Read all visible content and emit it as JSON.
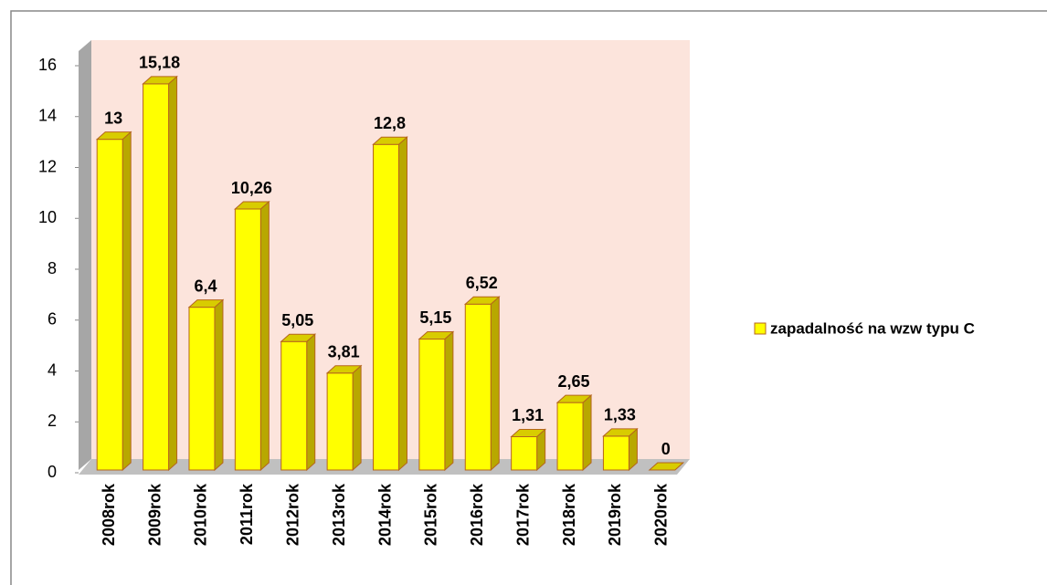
{
  "chart_data": {
    "type": "bar3d",
    "categories": [
      "2008rok",
      "2009rok",
      "2010rok",
      "2011rok",
      "2012rok",
      "2013rok",
      "2014rok",
      "2015rok",
      "2016rok",
      "2017rok",
      "2018rok",
      "2019rok",
      "2020rok"
    ],
    "series": [
      {
        "name": "zapadalność na wzw typu C",
        "color": "#ffff00",
        "values": [
          13,
          15.18,
          6.4,
          10.26,
          5.05,
          3.81,
          12.8,
          5.15,
          6.52,
          1.31,
          2.65,
          1.33,
          0
        ],
        "value_labels": [
          "13",
          "15,18",
          "6,4",
          "10,26",
          "5,05",
          "3,81",
          "12,8",
          "5,15",
          "6,52",
          "1,31",
          "2,65",
          "1,33",
          "0"
        ]
      }
    ],
    "ylim": [
      0,
      16
    ],
    "yticks": [
      0,
      2,
      4,
      6,
      8,
      10,
      12,
      14,
      16
    ],
    "grid": false,
    "legend": "right"
  }
}
